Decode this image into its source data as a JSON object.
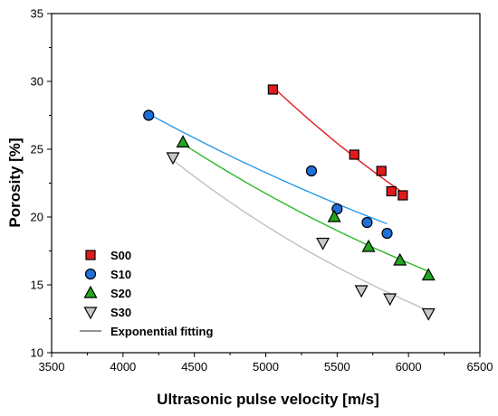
{
  "chart_data": {
    "type": "scatter",
    "xlabel": "Ultrasonic pulse velocity [m/s]",
    "ylabel": "Porosity [%]",
    "xlim": [
      3500,
      6500
    ],
    "ylim": [
      10,
      35
    ],
    "xticks": [
      3500,
      4000,
      4500,
      5000,
      5500,
      6000,
      6500
    ],
    "yticks": [
      10,
      15,
      20,
      25,
      30,
      35
    ],
    "legend_position": "bottom-left",
    "series": [
      {
        "name": "S00",
        "marker": "square",
        "color": "#e31a1c",
        "points": [
          [
            5050,
            29.4
          ],
          [
            5620,
            24.6
          ],
          [
            5810,
            23.4
          ],
          [
            5880,
            21.9
          ],
          [
            5960,
            21.6
          ]
        ],
        "fit": {
          "color": "#e31a1c",
          "x": [
            5050,
            5960
          ],
          "y_start": 29.6,
          "y_end": 21.8
        }
      },
      {
        "name": "S10",
        "marker": "circle",
        "color": "#1e6fd9",
        "points": [
          [
            4180,
            27.5
          ],
          [
            5320,
            23.4
          ],
          [
            5500,
            20.6
          ],
          [
            5710,
            19.6
          ],
          [
            5850,
            18.8
          ]
        ],
        "fit": {
          "color": "#2b9ae8",
          "x": [
            4180,
            5850
          ],
          "y_start": 27.6,
          "y_end": 19.5
        }
      },
      {
        "name": "S20",
        "marker": "triangle-up",
        "color": "#22a61e",
        "points": [
          [
            4420,
            25.5
          ],
          [
            5480,
            20.0
          ],
          [
            5720,
            17.8
          ],
          [
            5940,
            16.8
          ],
          [
            6140,
            15.7
          ]
        ],
        "fit": {
          "color": "#2fb82a",
          "x": [
            4420,
            6140
          ],
          "y_start": 25.4,
          "y_end": 16.0
        }
      },
      {
        "name": "S30",
        "marker": "triangle-down",
        "color": "#c8c8c8",
        "points": [
          [
            4350,
            24.4
          ],
          [
            5400,
            18.1
          ],
          [
            5670,
            14.6
          ],
          [
            5870,
            14.0
          ],
          [
            6140,
            12.9
          ]
        ],
        "fit": {
          "color": "#c0c0c0",
          "x": [
            4350,
            6140
          ],
          "y_start": 24.2,
          "y_end": 13.1
        }
      }
    ],
    "fit_legend_label": "Exponential fitting",
    "fit_legend_color": "#555555"
  }
}
